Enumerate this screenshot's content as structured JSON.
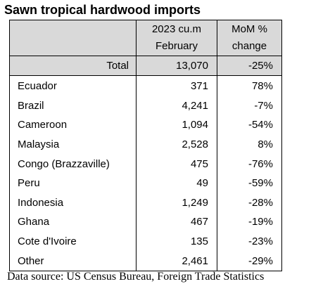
{
  "chart_data": {
    "type": "table",
    "title": "Sawn tropical hardwood imports",
    "columns": [
      {
        "line1": "2023 cu.m",
        "line2": "February"
      },
      {
        "line1": "MoM %",
        "line2": "change"
      }
    ],
    "total": {
      "label": "Total",
      "volume": "13,070",
      "mom": "-25%"
    },
    "rows": [
      {
        "country": "Ecuador",
        "volume": "371",
        "mom": "78%"
      },
      {
        "country": "Brazil",
        "volume": "4,241",
        "mom": "-7%"
      },
      {
        "country": "Cameroon",
        "volume": "1,094",
        "mom": "-54%"
      },
      {
        "country": "Malaysia",
        "volume": "2,528",
        "mom": "8%"
      },
      {
        "country": "Congo (Brazzaville)",
        "volume": "475",
        "mom": "-76%"
      },
      {
        "country": "Peru",
        "volume": "49",
        "mom": "-59%"
      },
      {
        "country": "Indonesia",
        "volume": "1,249",
        "mom": "-28%"
      },
      {
        "country": "Ghana",
        "volume": "467",
        "mom": "-19%"
      },
      {
        "country": "Cote d'Ivoire",
        "volume": "135",
        "mom": "-23%"
      },
      {
        "country": "Other",
        "volume": "2,461",
        "mom": "-29%"
      }
    ],
    "source": "Data source: US Census Bureau, Foreign Trade Statistics"
  }
}
